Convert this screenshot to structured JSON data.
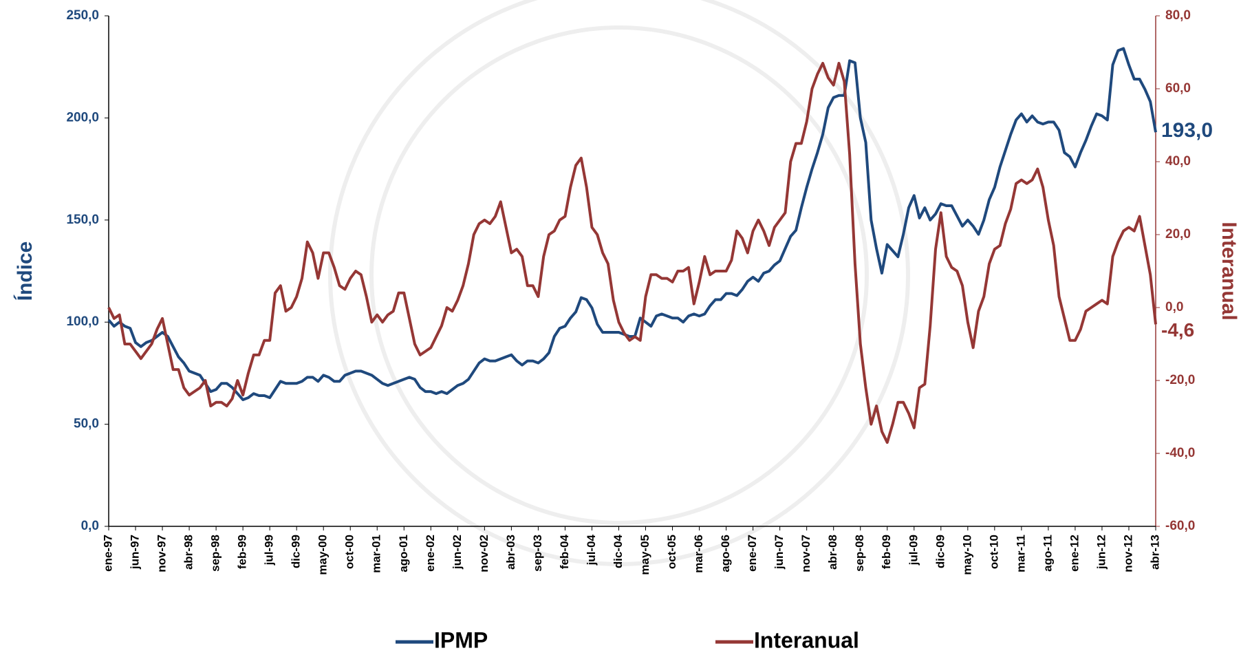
{
  "chart_data": {
    "type": "line",
    "y_label": "Índice",
    "y2_label": "Interanual",
    "ylim": [
      0,
      250
    ],
    "yticks": [
      {
        "value": 0,
        "label": "0,0"
      },
      {
        "value": 50,
        "label": "50,0"
      },
      {
        "value": 100,
        "label": "100,0"
      },
      {
        "value": 150,
        "label": "150,0"
      },
      {
        "value": 200,
        "label": "200,0"
      },
      {
        "value": 250,
        "label": "250,0"
      }
    ],
    "y2lim": [
      -60,
      80
    ],
    "y2ticks": [
      {
        "value": -60,
        "label": "-60,0"
      },
      {
        "value": -40,
        "label": "-40,0"
      },
      {
        "value": -20,
        "label": "-20,0"
      },
      {
        "value": 0,
        "label": "0,0"
      },
      {
        "value": 20,
        "label": "20,0"
      },
      {
        "value": 40,
        "label": "40,0"
      },
      {
        "value": 60,
        "label": "60,0"
      },
      {
        "value": 80,
        "label": "80,0"
      }
    ],
    "legend": "bottom",
    "categories": [
      "ene-97",
      null,
      null,
      null,
      null,
      "jun-97",
      null,
      null,
      null,
      null,
      "nov-97",
      null,
      null,
      null,
      null,
      "abr-98",
      null,
      null,
      null,
      null,
      "sep-98",
      null,
      null,
      null,
      null,
      "feb-99",
      null,
      null,
      null,
      null,
      "jul-99",
      null,
      null,
      null,
      null,
      "dic-99",
      null,
      null,
      null,
      null,
      "may-00",
      null,
      null,
      null,
      null,
      "oct-00",
      null,
      null,
      null,
      null,
      "mar-01",
      null,
      null,
      null,
      null,
      "ago-01",
      null,
      null,
      null,
      null,
      "ene-02",
      null,
      null,
      null,
      null,
      "jun-02",
      null,
      null,
      null,
      null,
      "nov-02",
      null,
      null,
      null,
      null,
      "abr-03",
      null,
      null,
      null,
      null,
      "sep-03",
      null,
      null,
      null,
      null,
      "feb-04",
      null,
      null,
      null,
      null,
      "jul-04",
      null,
      null,
      null,
      null,
      "dic-04",
      null,
      null,
      null,
      null,
      "may-05",
      null,
      null,
      null,
      null,
      "oct-05",
      null,
      null,
      null,
      null,
      "mar-06",
      null,
      null,
      null,
      null,
      "ago-06",
      null,
      null,
      null,
      null,
      "ene-07",
      null,
      null,
      null,
      null,
      "jun-07",
      null,
      null,
      null,
      null,
      "nov-07",
      null,
      null,
      null,
      null,
      "abr-08",
      null,
      null,
      null,
      null,
      "sep-08",
      null,
      null,
      null,
      null,
      "feb-09",
      null,
      null,
      null,
      null,
      "jul-09",
      null,
      null,
      null,
      null,
      "dic-09",
      null,
      null,
      null,
      null,
      "may-10",
      null,
      null,
      null,
      null,
      "oct-10",
      null,
      null,
      null,
      null,
      "mar-11",
      null,
      null,
      null,
      null,
      "ago-11",
      null,
      null,
      null,
      null,
      "ene-12",
      null,
      null,
      null,
      null,
      "jun-12",
      null,
      null,
      null,
      null,
      "nov-12",
      null,
      null,
      null,
      null,
      "abr-13"
    ],
    "series": [
      {
        "name": "IPMP",
        "color": "#1f497d",
        "axis": "y",
        "values": [
          101,
          98,
          100,
          98,
          97,
          90,
          88,
          90,
          91,
          93,
          95,
          93,
          88,
          83,
          80,
          76,
          75,
          74,
          70,
          66,
          67,
          70,
          70,
          68,
          65,
          62,
          63,
          65,
          64,
          64,
          63,
          67,
          71,
          70,
          70,
          70,
          71,
          73,
          73,
          71,
          74,
          73,
          71,
          71,
          74,
          75,
          76,
          76,
          75,
          74,
          72,
          70,
          69,
          70,
          71,
          72,
          73,
          72,
          68,
          66,
          66,
          65,
          66,
          65,
          67,
          69,
          70,
          72,
          76,
          80,
          82,
          81,
          81,
          82,
          83,
          84,
          81,
          79,
          81,
          81,
          80,
          82,
          85,
          93,
          97,
          98,
          102,
          105,
          112,
          111,
          107,
          99,
          95,
          95,
          95,
          95,
          94,
          93,
          93,
          102,
          100,
          98,
          103,
          104,
          103,
          102,
          102,
          100,
          103,
          104,
          103,
          104,
          108,
          111,
          111,
          114,
          114,
          113,
          116,
          120,
          122,
          120,
          124,
          125,
          128,
          130,
          136,
          142,
          145,
          156,
          166,
          175,
          183,
          192,
          205,
          210,
          211,
          211,
          228,
          227,
          200,
          188,
          150,
          136,
          124,
          138,
          135,
          132,
          143,
          156,
          162,
          151,
          156,
          150,
          153,
          158,
          157,
          157,
          152,
          147,
          150,
          147,
          143,
          150,
          160,
          166,
          176,
          184,
          192,
          199,
          202,
          198,
          201,
          198,
          197,
          198,
          198,
          194,
          183,
          181,
          176,
          183,
          189,
          196,
          202,
          201,
          199,
          226,
          233,
          234,
          226,
          219,
          219,
          214,
          208,
          193.0
        ],
        "value_labels": [
          null,
          null,
          null,
          null,
          null,
          null,
          null,
          null,
          null,
          null,
          null,
          null,
          null,
          null,
          null,
          null,
          null,
          null,
          null,
          null,
          null,
          null,
          null,
          null,
          null,
          null,
          null,
          null,
          null,
          null,
          null,
          null,
          null,
          null,
          null,
          null,
          null,
          null,
          null,
          null,
          null,
          null,
          null,
          null,
          null,
          null,
          null,
          null,
          null,
          null,
          null,
          null,
          null,
          null,
          null,
          null,
          null,
          null,
          null,
          null,
          null,
          null,
          null,
          null,
          null,
          null,
          null,
          null,
          null,
          null,
          null,
          null,
          null,
          null,
          null,
          null,
          null,
          null,
          null,
          null,
          null,
          null,
          null,
          null,
          null,
          null,
          null,
          null,
          null,
          null,
          null,
          null,
          null,
          null,
          null,
          null,
          null,
          null,
          null,
          null,
          null,
          null,
          null,
          null,
          null,
          null,
          null,
          null,
          null,
          null,
          null,
          null,
          null,
          null,
          null,
          null,
          null,
          null,
          null,
          null,
          null,
          null,
          null,
          null,
          null,
          null,
          null,
          null,
          null,
          null,
          null,
          null,
          null,
          null,
          null,
          null,
          null,
          null,
          null,
          null,
          null,
          null,
          null,
          null,
          null,
          null,
          null,
          null,
          null,
          null,
          null,
          null,
          null,
          null,
          null,
          null,
          null,
          null,
          null,
          null,
          null,
          null,
          null,
          null,
          null,
          null,
          null,
          null,
          null,
          null,
          null,
          null,
          null,
          null,
          null,
          null,
          null,
          null,
          null,
          null,
          null,
          null,
          null,
          null,
          null,
          null,
          null,
          null,
          null,
          null,
          null,
          null,
          null,
          null,
          null,
          "193,0"
        ]
      },
      {
        "name": "Interanual",
        "color": "#953735",
        "axis": "y2",
        "values": [
          0,
          -3,
          -2,
          -10,
          -10,
          -12,
          -14,
          -12,
          -10,
          -6,
          -3,
          -10,
          -17,
          -17,
          -22,
          -24,
          -23,
          -22,
          -20,
          -27,
          -26,
          -26,
          -27,
          -25,
          -20,
          -24,
          -18,
          -13,
          -13,
          -9,
          -9,
          4,
          6,
          -1,
          0,
          3,
          8,
          18,
          15,
          8,
          15,
          15,
          11,
          6,
          5,
          8,
          10,
          9,
          3,
          -4,
          -2,
          -4,
          -2,
          -1,
          4,
          4,
          -3,
          -10,
          -13,
          -12,
          -11,
          -8,
          -5,
          0,
          -1,
          2,
          6,
          12,
          20,
          23,
          24,
          23,
          25,
          29,
          22,
          15,
          16,
          14,
          6,
          6,
          3,
          14,
          20,
          21,
          24,
          25,
          33,
          39,
          41,
          33,
          22,
          20,
          15,
          12,
          2,
          -4,
          -7,
          -9,
          -8,
          -9,
          3,
          9,
          9,
          8,
          8,
          7,
          10,
          10,
          11,
          1,
          7,
          14,
          9,
          10,
          10,
          10,
          13,
          21,
          19,
          15,
          21,
          24,
          21,
          17,
          22,
          24,
          26,
          40,
          45,
          45,
          51,
          60,
          64,
          67,
          63,
          61,
          67,
          62,
          42,
          12,
          -10,
          -22,
          -32,
          -27,
          -34,
          -37,
          -32,
          -26,
          -26,
          -29,
          -33,
          -22,
          -21,
          -5,
          16,
          26,
          14,
          11,
          10,
          6,
          -4,
          -11,
          -1,
          3,
          12,
          16,
          17,
          23,
          27,
          34,
          35,
          34,
          35,
          38,
          33,
          24,
          17,
          3,
          -3,
          -9,
          -9,
          -6,
          -1,
          0,
          1,
          2,
          1,
          14,
          18,
          21,
          22,
          21,
          25,
          17,
          9,
          -4.6
        ],
        "value_labels": [
          null,
          null,
          null,
          null,
          null,
          null,
          null,
          null,
          null,
          null,
          null,
          null,
          null,
          null,
          null,
          null,
          null,
          null,
          null,
          null,
          null,
          null,
          null,
          null,
          null,
          null,
          null,
          null,
          null,
          null,
          null,
          null,
          null,
          null,
          null,
          null,
          null,
          null,
          null,
          null,
          null,
          null,
          null,
          null,
          null,
          null,
          null,
          null,
          null,
          null,
          null,
          null,
          null,
          null,
          null,
          null,
          null,
          null,
          null,
          null,
          null,
          null,
          null,
          null,
          null,
          null,
          null,
          null,
          null,
          null,
          null,
          null,
          null,
          null,
          null,
          null,
          null,
          null,
          null,
          null,
          null,
          null,
          null,
          null,
          null,
          null,
          null,
          null,
          null,
          null,
          null,
          null,
          null,
          null,
          null,
          null,
          null,
          null,
          null,
          null,
          null,
          null,
          null,
          null,
          null,
          null,
          null,
          null,
          null,
          null,
          null,
          null,
          null,
          null,
          null,
          null,
          null,
          null,
          null,
          null,
          null,
          null,
          null,
          null,
          null,
          null,
          null,
          null,
          null,
          null,
          null,
          null,
          null,
          null,
          null,
          null,
          null,
          null,
          null,
          null,
          null,
          null,
          null,
          null,
          null,
          null,
          null,
          null,
          null,
          null,
          null,
          null,
          null,
          null,
          null,
          null,
          null,
          null,
          null,
          null,
          null,
          null,
          null,
          null,
          null,
          null,
          null,
          null,
          null,
          null,
          null,
          null,
          null,
          null,
          null,
          null,
          null,
          null,
          null,
          null,
          null,
          null,
          null,
          null,
          null,
          null,
          null,
          null,
          null,
          null,
          null,
          null,
          null,
          null,
          null,
          "-4,6"
        ]
      }
    ]
  }
}
